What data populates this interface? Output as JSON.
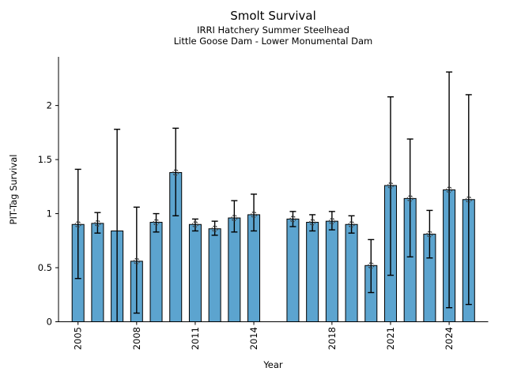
{
  "colors": {
    "background": "#ffffff",
    "bar_fill": "#5CA4CF",
    "bar_edge": "#000000",
    "error_bar": "#000000",
    "marker_outline": "#3d3d3d",
    "axis": "#000000",
    "text": "#000000"
  },
  "chart_data": {
    "type": "bar",
    "title": "Smolt Survival",
    "subtitle1": "IRRI Hatchery Summer Steelhead",
    "subtitle2": "Little Goose Dam - Lower Monumental Dam",
    "xlabel": "Year",
    "ylabel": "PIT-Tag Survival",
    "grid": false,
    "legend": null,
    "xlim": [
      2004,
      2026
    ],
    "ylim": [
      0,
      2.45
    ],
    "x_ticks": [
      2005,
      2008,
      2011,
      2014,
      2018,
      2021,
      2024
    ],
    "x_tick_labels": [
      "2005",
      "2008",
      "2011",
      "2014",
      "2018",
      "2021",
      "2024"
    ],
    "y_ticks": [
      0,
      0.5,
      1,
      1.5,
      2
    ],
    "y_tick_labels": [
      "0",
      "0.5",
      "1",
      "1.5",
      "2"
    ],
    "series": [
      {
        "name": "PIT-Tag Survival",
        "points": [
          {
            "year": 2005,
            "value": 0.9,
            "err_low": 0.4,
            "err_high": 1.41,
            "marker": true
          },
          {
            "year": 2006,
            "value": 0.91,
            "err_low": 0.82,
            "err_high": 1.01,
            "marker": true
          },
          {
            "year": 2007,
            "value": 0.84,
            "err_low": 0.0,
            "err_high": 1.78,
            "marker": false
          },
          {
            "year": 2008,
            "value": 0.56,
            "err_low": 0.08,
            "err_high": 1.06,
            "marker": true
          },
          {
            "year": 2009,
            "value": 0.92,
            "err_low": 0.83,
            "err_high": 1.0,
            "marker": true
          },
          {
            "year": 2010,
            "value": 1.38,
            "err_low": 0.98,
            "err_high": 1.79,
            "marker": true
          },
          {
            "year": 2011,
            "value": 0.9,
            "err_low": 0.84,
            "err_high": 0.95,
            "marker": true
          },
          {
            "year": 2012,
            "value": 0.86,
            "err_low": 0.8,
            "err_high": 0.93,
            "marker": true
          },
          {
            "year": 2013,
            "value": 0.96,
            "err_low": 0.83,
            "err_high": 1.12,
            "marker": true
          },
          {
            "year": 2014,
            "value": 0.99,
            "err_low": 0.84,
            "err_high": 1.18,
            "marker": true
          },
          {
            "year": 2016,
            "value": 0.95,
            "err_low": 0.88,
            "err_high": 1.02,
            "marker": true
          },
          {
            "year": 2017,
            "value": 0.92,
            "err_low": 0.84,
            "err_high": 0.99,
            "marker": true
          },
          {
            "year": 2018,
            "value": 0.93,
            "err_low": 0.85,
            "err_high": 1.02,
            "marker": true
          },
          {
            "year": 2019,
            "value": 0.9,
            "err_low": 0.82,
            "err_high": 0.98,
            "marker": true
          },
          {
            "year": 2020,
            "value": 0.52,
            "err_low": 0.27,
            "err_high": 0.76,
            "marker": true
          },
          {
            "year": 2021,
            "value": 1.26,
            "err_low": 0.43,
            "err_high": 2.08,
            "marker": true
          },
          {
            "year": 2022,
            "value": 1.14,
            "err_low": 0.6,
            "err_high": 1.69,
            "marker": true
          },
          {
            "year": 2023,
            "value": 0.81,
            "err_low": 0.59,
            "err_high": 1.03,
            "marker": true
          },
          {
            "year": 2024,
            "value": 1.22,
            "err_low": 0.13,
            "err_high": 2.31,
            "marker": true
          },
          {
            "year": 2025,
            "value": 1.13,
            "err_low": 0.16,
            "err_high": 2.1,
            "marker": true
          }
        ]
      }
    ]
  }
}
